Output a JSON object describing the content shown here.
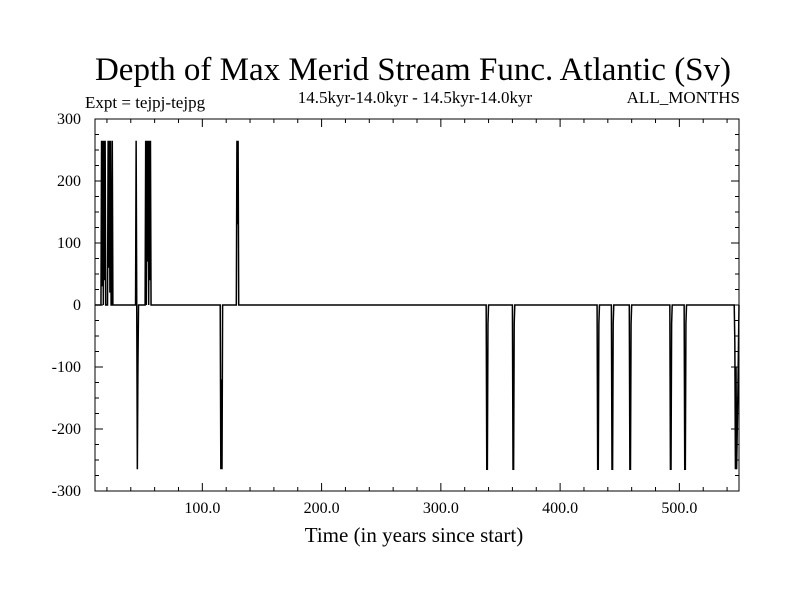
{
  "chart_data": {
    "type": "line",
    "title": "Depth of Max Merid Stream Func. Atlantic (Sv)",
    "subtitle_left": "Expt = tejpj-tejpg",
    "subtitle_center": "14.5kyr-14.0kyr - 14.5kyr-14.0kyr",
    "subtitle_right": "ALL_MONTHS",
    "xlabel": "Time (in years since start)",
    "ylabel": "",
    "xlim": [
      10,
      550
    ],
    "ylim": [
      -300,
      300
    ],
    "x_ticks": [
      100,
      200,
      300,
      400,
      500
    ],
    "x_tick_labels": [
      "100.0",
      "200.0",
      "300.0",
      "400.0",
      "500.0"
    ],
    "y_ticks": [
      -300,
      -200,
      -100,
      0,
      100,
      200,
      300
    ],
    "y_tick_labels": [
      "-300",
      "-200",
      "-100",
      "0",
      "100",
      "200",
      "300"
    ],
    "grid": false,
    "series": [
      {
        "color": "#000000",
        "x": [
          10,
          15,
          15.5,
          16,
          16.5,
          17,
          17.5,
          18,
          18.5,
          19,
          19.5,
          20,
          20.5,
          21,
          21.5,
          22,
          22.5,
          23,
          23.5,
          24,
          24.5,
          25,
          25.5,
          26,
          27,
          44,
          44.5,
          45,
          45.5,
          46,
          46.5,
          52,
          52.5,
          53,
          53.5,
          54,
          54.5,
          55,
          55.5,
          56,
          56.5,
          57,
          57.5,
          58,
          115,
          115.5,
          116,
          116.5,
          117,
          128,
          128.5,
          129,
          129.5,
          130,
          130.5,
          131,
          338,
          338.5,
          339,
          339.5,
          340,
          360,
          360.5,
          361,
          361.5,
          362,
          431,
          431.5,
          432,
          432.5,
          433,
          443,
          443.5,
          444,
          444.5,
          445,
          458,
          458.5,
          459,
          459.5,
          460,
          492,
          492.5,
          493,
          493.5,
          494,
          504,
          504.5,
          505,
          505.5,
          506,
          546,
          546.5,
          547,
          547.5,
          548,
          549,
          550
        ],
        "values": [
          0,
          0,
          265,
          30,
          265,
          0,
          265,
          40,
          265,
          0,
          0,
          0,
          0,
          265,
          60,
          265,
          20,
          265,
          0,
          0,
          265,
          0,
          0,
          0,
          0,
          0,
          265,
          0,
          -265,
          -100,
          0,
          0,
          265,
          0,
          265,
          70,
          265,
          0,
          265,
          40,
          265,
          0,
          0,
          0,
          0,
          -265,
          -120,
          -265,
          0,
          0,
          0,
          265,
          130,
          265,
          0,
          0,
          0,
          -265,
          -265,
          -30,
          0,
          0,
          -265,
          -265,
          -30,
          0,
          0,
          -265,
          -265,
          -30,
          0,
          0,
          -265,
          -265,
          -30,
          0,
          0,
          -265,
          -265,
          -30,
          0,
          0,
          -265,
          -265,
          -30,
          0,
          0,
          -265,
          -265,
          -30,
          0,
          0,
          -60,
          -265,
          -100,
          -265,
          -150,
          0
        ]
      }
    ]
  }
}
